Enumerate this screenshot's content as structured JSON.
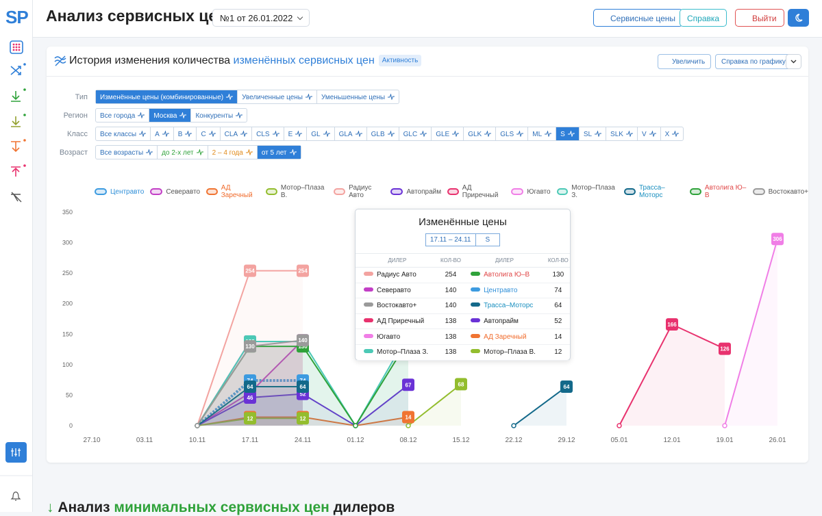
{
  "header": {
    "logo": "SP",
    "title": "Анализ сервисных цен",
    "selector": "№1 от 26.01.2022",
    "buttons": [
      "Сервисные цены",
      "Справка",
      "Выйти"
    ]
  },
  "panel": {
    "title_prefix": "История изменения количества",
    "title_highlight": "изменённых сервисных цен",
    "badge": "Активность",
    "buttons": [
      "Увеличить",
      "Справка по графику"
    ]
  },
  "filters": [
    {
      "label": "Тип",
      "active": 0,
      "options": [
        "Изменённые цены (комбинированные)",
        "Увеличенные цены",
        "Уменьшенные цены"
      ]
    },
    {
      "label": "Регион",
      "active": 1,
      "options": [
        "Все города",
        "Москва",
        "Конкуренты"
      ]
    },
    {
      "label": "Класс",
      "active": 15,
      "options": [
        "Все классы",
        "A",
        "B",
        "C",
        "CLA",
        "CLS",
        "E",
        "GL",
        "GLA",
        "GLB",
        "GLC",
        "GLE",
        "GLK",
        "GLS",
        "ML",
        "S",
        "SL",
        "SLK",
        "V",
        "X"
      ]
    },
    {
      "label": "Возраст",
      "active": 3,
      "options": [
        "Все возрасты",
        "до 2-х лет",
        "2 – 4 года",
        "от 5 лет"
      ]
    }
  ],
  "chart_data": {
    "type": "line",
    "categories": [
      "27.10",
      "03.11",
      "10.11",
      "17.11",
      "24.11",
      "01.12",
      "08.12",
      "15.12",
      "22.12",
      "29.12",
      "05.01",
      "12.01",
      "19.01",
      "26.01"
    ],
    "ylim": [
      0,
      350
    ],
    "yticks": [
      0,
      50,
      100,
      150,
      200,
      250,
      300,
      350
    ],
    "grid": false,
    "series": [
      {
        "name": "Центравто",
        "color": "#3d9be0",
        "label_color": "#2f8fd8",
        "dashed": true,
        "values": [
          null,
          null,
          0,
          74,
          74,
          null,
          null,
          null,
          null,
          null,
          null,
          null,
          null,
          null
        ]
      },
      {
        "name": "Северавто",
        "color": "#c23fc6",
        "values": [
          null,
          null,
          0,
          54,
          140,
          null,
          null,
          null,
          null,
          null,
          null,
          null,
          null,
          null
        ]
      },
      {
        "name": "АД Заречный",
        "color": "#f07432",
        "label_color": "#f06a2a",
        "values": [
          null,
          null,
          0,
          14,
          14,
          0,
          14,
          null,
          null,
          null,
          null,
          null,
          null,
          null
        ]
      },
      {
        "name": "Мотор–Плаза В.",
        "color": "#93bd2e",
        "values": [
          null,
          null,
          0,
          12,
          12,
          null,
          0,
          68,
          null,
          null,
          null,
          null,
          null,
          null
        ]
      },
      {
        "name": "Радиус Авто",
        "color": "#f3a3a0",
        "values": [
          null,
          null,
          0,
          254,
          254,
          null,
          null,
          null,
          null,
          null,
          null,
          null,
          null,
          null
        ]
      },
      {
        "name": "Автопрайм",
        "color": "#6a32d6",
        "values": [
          null,
          null,
          0,
          46,
          52,
          0,
          67,
          null,
          null,
          null,
          null,
          null,
          null,
          null
        ]
      },
      {
        "name": "АД Приречный",
        "color": "#e8326e",
        "values": [
          null,
          null,
          0,
          138,
          138,
          null,
          null,
          null,
          null,
          null,
          0,
          166,
          126,
          null
        ]
      },
      {
        "name": "Югавто",
        "color": "#f07ee6",
        "values": [
          null,
          null,
          0,
          138,
          138,
          null,
          null,
          null,
          null,
          null,
          null,
          null,
          0,
          306
        ]
      },
      {
        "name": "Мотор–Плаза З.",
        "color": "#4cc9b6",
        "values": [
          null,
          null,
          0,
          138,
          138,
          0,
          150,
          null,
          null,
          null,
          null,
          null,
          null,
          null
        ]
      },
      {
        "name": "Трасса–Моторс",
        "color": "#13698a",
        "label_color": "#1a8fbf",
        "values": [
          null,
          null,
          0,
          64,
          64,
          null,
          null,
          null,
          0,
          64,
          null,
          null,
          null,
          null
        ]
      },
      {
        "name": "Автолига Ю–В",
        "color": "#2fa23a",
        "label_color": "#e04848",
        "values": [
          null,
          null,
          0,
          130,
          130,
          0,
          140,
          null,
          null,
          null,
          null,
          null,
          null,
          null
        ]
      },
      {
        "name": "Востокавто+",
        "color": "#9a9a9a",
        "values": [
          null,
          null,
          0,
          130,
          140,
          null,
          null,
          null,
          null,
          null,
          null,
          null,
          null,
          null
        ]
      }
    ]
  },
  "tooltip": {
    "title": "Изменённые цены",
    "period": "17.11 – 24.11",
    "class": "S",
    "headers": [
      "ДИЛЕР",
      "КОЛ-ВО",
      "ДИЛЕР",
      "КОЛ-ВО"
    ],
    "rows": [
      [
        "Радиус Авто",
        "254",
        "Автолига Ю–В",
        "130"
      ],
      [
        "Северавто",
        "140",
        "Центравто",
        "74"
      ],
      [
        "Востокавто+",
        "140",
        "Трасса–Моторс",
        "64"
      ],
      [
        "АД Приречный",
        "138",
        "Автопрайм",
        "52"
      ],
      [
        "Югавто",
        "138",
        "АД Заречный",
        "14"
      ],
      [
        "Мотор–Плаза З.",
        "138",
        "Мотор–Плаза В.",
        "12"
      ]
    ]
  },
  "next_section": {
    "prefix": "Анализ",
    "highlight": "минимальных сервисных цен",
    "suffix": "дилеров"
  }
}
